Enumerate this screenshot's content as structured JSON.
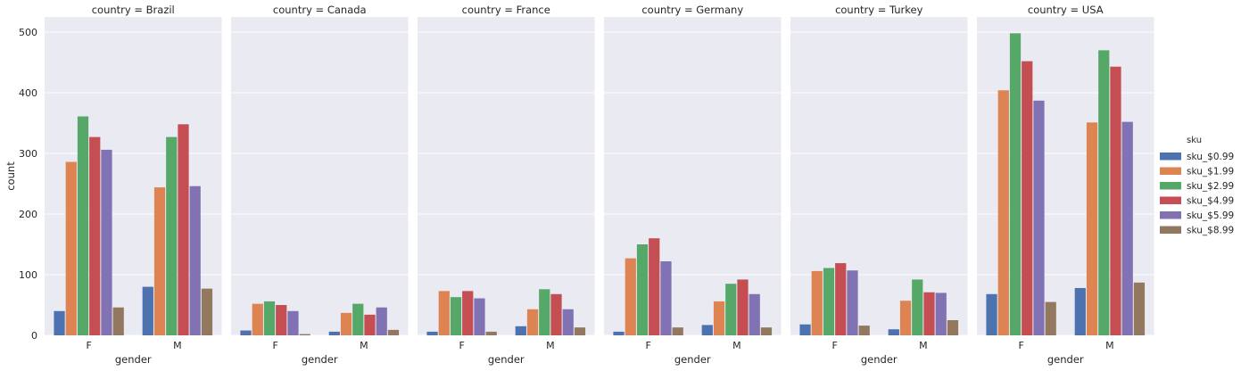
{
  "chart_data": {
    "type": "bar",
    "facet_prefix": "country = ",
    "facets": [
      {
        "country": "Brazil",
        "series": {
          "F": [
            40,
            286,
            361,
            327,
            306,
            46
          ],
          "M": [
            80,
            244,
            327,
            348,
            246,
            77
          ]
        }
      },
      {
        "country": "Canada",
        "series": {
          "F": [
            8,
            52,
            56,
            50,
            40,
            2
          ],
          "M": [
            6,
            37,
            52,
            34,
            46,
            9
          ]
        }
      },
      {
        "country": "France",
        "series": {
          "F": [
            6,
            73,
            63,
            73,
            61,
            6
          ],
          "M": [
            15,
            43,
            76,
            68,
            43,
            13
          ]
        }
      },
      {
        "country": "Germany",
        "series": {
          "F": [
            6,
            127,
            150,
            160,
            122,
            13
          ],
          "M": [
            17,
            56,
            85,
            92,
            68,
            13
          ]
        }
      },
      {
        "country": "Turkey",
        "series": {
          "F": [
            18,
            106,
            111,
            119,
            107,
            16
          ],
          "M": [
            10,
            57,
            92,
            71,
            70,
            25
          ]
        }
      },
      {
        "country": "USA",
        "series": {
          "F": [
            68,
            404,
            498,
            452,
            387,
            55
          ],
          "M": [
            78,
            351,
            470,
            443,
            352,
            87
          ]
        }
      }
    ],
    "categories": [
      "F",
      "M"
    ],
    "hue": [
      "sku_$0.99",
      "sku_$1.99",
      "sku_$2.99",
      "sku_$4.99",
      "sku_$5.99",
      "sku_$8.99"
    ],
    "colors": [
      "#4c72b0",
      "#dd8452",
      "#55a868",
      "#c44e52",
      "#8172b3",
      "#937860"
    ],
    "xlabel": "gender",
    "ylabel": "count",
    "ylim": [
      0,
      525
    ],
    "yticks": [
      0,
      100,
      200,
      300,
      400,
      500
    ],
    "legend_title": "sku",
    "legend_position": "right",
    "grid": true,
    "background": "#eaeaf2"
  }
}
